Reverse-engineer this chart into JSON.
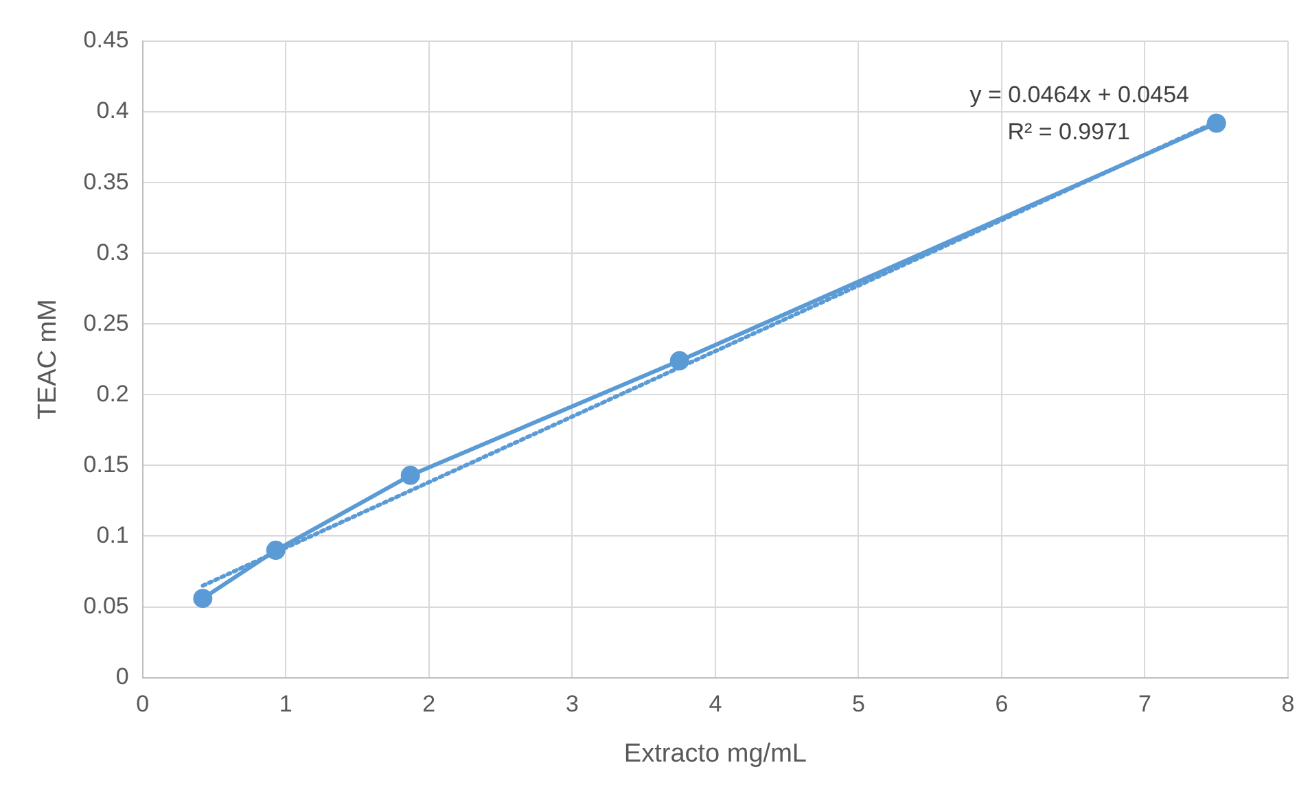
{
  "chart_data": {
    "type": "line",
    "xlabel": "Extracto mg/mL",
    "ylabel": "TEAC mM",
    "xlim": [
      0,
      8
    ],
    "xticks": [
      0,
      1,
      2,
      3,
      4,
      5,
      6,
      7,
      8
    ],
    "ylim": [
      0,
      0.45
    ],
    "yticks": [
      0,
      0.05,
      0.1,
      0.15,
      0.2,
      0.25,
      0.3,
      0.35,
      0.4,
      0.45
    ],
    "grid": true,
    "legend": false,
    "series": [
      {
        "color": "#5b9bd5",
        "x": [
          0.42,
          0.93,
          1.87,
          3.75,
          7.5
        ],
        "values": [
          0.056,
          0.09,
          0.143,
          0.224,
          0.392
        ],
        "marker": "circle",
        "line_style": "solid"
      },
      {
        "type": "line",
        "color": "#5b9bd5",
        "x": [
          0.42,
          7.5
        ],
        "values": [
          0.065,
          0.393
        ],
        "marker": "none",
        "line_style": "dotted"
      }
    ],
    "annotations": [
      "y = 0.0464x + 0.0454",
      "R² = 0.9971"
    ]
  }
}
